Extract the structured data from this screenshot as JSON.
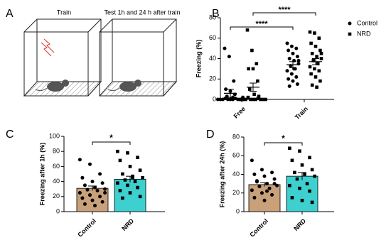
{
  "panel_a": {
    "label": "A",
    "left_title": "Train",
    "right_title": "Test 1h and 24 h after train"
  },
  "chart_data": [
    {
      "type": "dot",
      "panel_label": "B",
      "ylabel": "Freezing  (%)",
      "categories": [
        "Free",
        "Train"
      ],
      "series": [
        {
          "name": "Control",
          "marker": "circle",
          "color": "#000000",
          "values": [
            [
              50,
              42,
              18,
              10,
              8,
              5,
              3,
              2,
              2,
              1,
              1,
              0,
              0,
              0,
              0,
              0,
              0,
              0,
              0,
              0
            ],
            [
              55,
              52,
              50,
              48,
              45,
              42,
              40,
              38,
              35,
              33,
              30,
              28,
              25,
              22,
              20,
              18,
              15,
              13,
              30,
              38
            ]
          ],
          "mean": [
            6,
            34
          ],
          "sem": [
            4,
            3
          ]
        },
        {
          "name": "NRD",
          "marker": "square",
          "color": "#000000",
          "values": [
            [
              68,
              48,
              35,
              30,
              30,
              18,
              10,
              5,
              3,
              2,
              1,
              0,
              0,
              0,
              0,
              0,
              0,
              0,
              0,
              0
            ],
            [
              66,
              65,
              60,
              55,
              52,
              48,
              45,
              42,
              40,
              38,
              35,
              32,
              30,
              28,
              25,
              22,
              18,
              14,
              12,
              45
            ]
          ],
          "mean": [
            12,
            37
          ],
          "sem": [
            4,
            3
          ]
        }
      ],
      "ylim": [
        0,
        80
      ],
      "yticks": [
        0,
        20,
        40,
        60,
        80
      ],
      "legend": "right",
      "annotations": [
        {
          "text": "****",
          "series": 0
        },
        {
          "text": "****",
          "series": 1
        }
      ]
    },
    {
      "type": "bar_dot",
      "panel_label": "C",
      "ylabel": "Freezing after 1h (%)",
      "categories": [
        "Control",
        "NRD"
      ],
      "colors": [
        "#c8a07a",
        "#3ecfcf"
      ],
      "markers": [
        "circle",
        "square"
      ],
      "values": [
        31,
        43
      ],
      "sem": [
        3,
        4
      ],
      "points": [
        [
          69,
          63,
          50,
          45,
          40,
          38,
          35,
          32,
          30,
          29,
          28,
          25,
          22,
          20,
          18,
          15,
          13,
          10,
          8,
          25
        ],
        [
          80,
          78,
          72,
          68,
          60,
          55,
          50,
          47,
          45,
          42,
          40,
          38,
          35,
          32,
          28,
          25,
          20,
          18,
          45
        ]
      ],
      "ylim": [
        0,
        100
      ],
      "yticks": [
        0,
        20,
        40,
        60,
        80,
        100
      ],
      "annotations": [
        {
          "text": "*"
        }
      ]
    },
    {
      "type": "bar_dot",
      "panel_label": "D",
      "ylabel": "Freezing after 24h (%)",
      "categories": [
        "Control",
        "NRD"
      ],
      "colors": [
        "#c8a07a",
        "#3ecfcf"
      ],
      "markers": [
        "circle",
        "square"
      ],
      "values": [
        29,
        38
      ],
      "sem": [
        2,
        4
      ],
      "points": [
        [
          55,
          45,
          42,
          40,
          38,
          35,
          32,
          30,
          28,
          27,
          25,
          23,
          20,
          18,
          15,
          12,
          30,
          33,
          22
        ],
        [
          68,
          65,
          58,
          55,
          50,
          45,
          42,
          40,
          38,
          35,
          30,
          28,
          25,
          22,
          15,
          12,
          10
        ]
      ],
      "ylim": [
        0,
        80
      ],
      "yticks": [
        0,
        20,
        40,
        60,
        80
      ],
      "annotations": [
        {
          "text": "*"
        }
      ]
    }
  ]
}
